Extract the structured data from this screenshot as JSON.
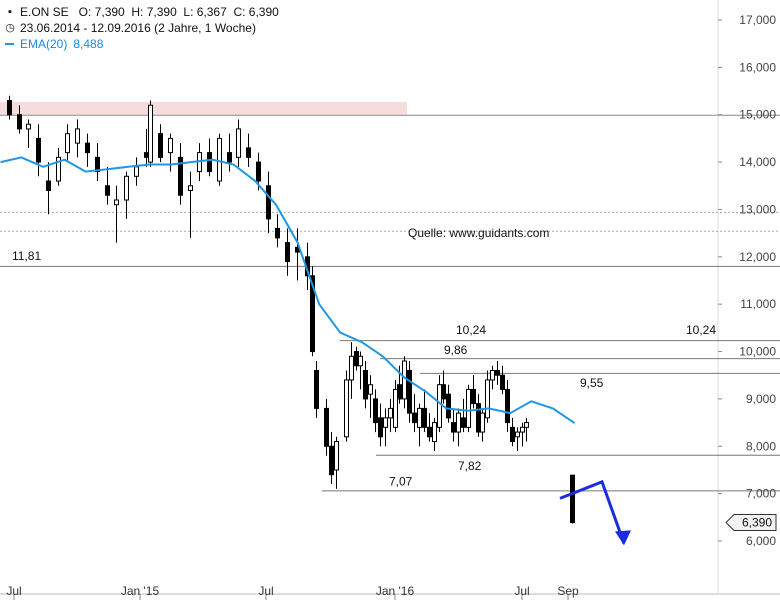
{
  "legend": {
    "ticker_line": "E.ON SE   O: 7,390  H: 7,390  L: 6,367  C: 6,390",
    "range_line": "23.06.2014 - 12.09.2016 (2 Jahre, 1 Woche)",
    "ema_label": "EMA(20)",
    "ema_value": "8,488",
    "icons": {
      "chart": "chart-icon",
      "clock": "clock-icon"
    }
  },
  "colors": {
    "ema": "#2196e6",
    "resistance_zone": "#f6dcdc",
    "forecast_arrow": "#1a2ee0",
    "candles": "#000000"
  },
  "source_label": "Quelle: www.guidants.com",
  "last_price_tag": "6,390",
  "chart_data": {
    "type": "candlestick",
    "title": "E.ON SE",
    "subtitle": "23.06.2014 - 12.09.2016 (2 Jahre, 1 Woche)",
    "y_axis": {
      "position": "right",
      "range": [
        5400,
        17400
      ],
      "ticks": [
        "6,000",
        "7,000",
        "8,000",
        "9,000",
        "10,000",
        "11,000",
        "12,000",
        "13,000",
        "14,000",
        "15,000",
        "16,000",
        "17,000"
      ]
    },
    "x_axis": {
      "tick_labels": [
        "Jul",
        "Jan '15",
        "Jul",
        "Jan '16",
        "Jul",
        "Sep"
      ]
    },
    "levels": [
      {
        "value": 15.0,
        "label": ""
      },
      {
        "value": 12.95,
        "label": ""
      },
      {
        "value": 12.55,
        "label": ""
      },
      {
        "value": 11.81,
        "label": "11,81"
      },
      {
        "value": 10.24,
        "label": "10,24"
      },
      {
        "value": 10.24,
        "label": "10,24"
      },
      {
        "value": 9.86,
        "label": "9,86"
      },
      {
        "value": 9.55,
        "label": "9,55"
      },
      {
        "value": 7.82,
        "label": "7,82"
      },
      {
        "value": 7.07,
        "label": "7,07"
      }
    ],
    "resistance_zone": [
      15.0,
      15.27
    ],
    "ema20": {
      "name": "EMA(20)",
      "last": 8.488,
      "x": [
        "2014-06",
        "2014-07",
        "2014-08",
        "2014-09",
        "2014-10",
        "2014-11",
        "2014-12",
        "2015-01",
        "2015-02",
        "2015-03",
        "2015-04",
        "2015-05",
        "2015-06",
        "2015-07",
        "2015-08",
        "2015-09",
        "2015-10",
        "2015-11",
        "2015-12",
        "2016-01",
        "2016-02",
        "2016-03",
        "2016-04",
        "2016-05",
        "2016-06",
        "2016-07",
        "2016-08",
        "2016-09"
      ],
      "values": [
        14.0,
        14.1,
        13.9,
        14.05,
        13.8,
        13.85,
        13.9,
        13.95,
        13.95,
        14.0,
        14.05,
        13.95,
        13.6,
        13.1,
        12.3,
        11.0,
        10.4,
        10.2,
        9.9,
        9.45,
        9.15,
        8.8,
        8.75,
        8.8,
        8.7,
        8.95,
        8.8,
        8.49
      ]
    },
    "candles": [
      [
        "2014-06-27",
        15.3,
        15.4,
        14.9,
        15.0
      ],
      [
        "2014-07-11",
        15.0,
        15.2,
        14.6,
        14.7
      ],
      [
        "2014-07-25",
        14.7,
        14.9,
        14.3,
        14.8
      ],
      [
        "2014-08-08",
        14.5,
        14.8,
        13.7,
        14.0
      ],
      [
        "2014-08-22",
        13.6,
        14.0,
        12.9,
        13.4
      ],
      [
        "2014-09-05",
        13.6,
        14.3,
        13.5,
        14.1
      ],
      [
        "2014-09-19",
        14.2,
        14.8,
        14.0,
        14.6
      ],
      [
        "2014-10-03",
        14.4,
        14.9,
        14.1,
        14.7
      ],
      [
        "2014-10-17",
        14.4,
        14.6,
        13.9,
        14.2
      ],
      [
        "2014-10-31",
        14.1,
        14.4,
        13.6,
        13.8
      ],
      [
        "2014-11-14",
        13.5,
        13.9,
        13.1,
        13.3
      ],
      [
        "2014-11-28",
        13.1,
        13.5,
        12.3,
        13.2
      ],
      [
        "2014-12-12",
        13.2,
        13.8,
        12.8,
        13.7
      ],
      [
        "2014-12-26",
        13.7,
        14.1,
        13.5,
        13.9
      ],
      [
        "2015-01-09",
        14.2,
        14.7,
        13.9,
        14.1
      ],
      [
        "2015-01-16",
        14.0,
        15.3,
        13.9,
        15.2
      ],
      [
        "2015-01-30",
        14.6,
        14.8,
        14.0,
        14.1
      ],
      [
        "2015-02-13",
        14.2,
        14.6,
        13.8,
        14.5
      ],
      [
        "2015-02-27",
        14.1,
        14.4,
        13.1,
        13.3
      ],
      [
        "2015-03-13",
        13.4,
        13.8,
        12.4,
        13.5
      ],
      [
        "2015-03-27",
        13.8,
        14.4,
        13.6,
        14.2
      ],
      [
        "2015-04-10",
        14.2,
        14.5,
        13.7,
        13.8
      ],
      [
        "2015-04-24",
        13.6,
        14.6,
        13.5,
        14.5
      ],
      [
        "2015-05-08",
        14.2,
        14.6,
        13.8,
        14.0
      ],
      [
        "2015-05-22",
        14.1,
        14.9,
        13.9,
        14.7
      ],
      [
        "2015-06-05",
        14.3,
        14.6,
        13.9,
        14.1
      ],
      [
        "2015-06-19",
        14.0,
        14.2,
        13.4,
        13.6
      ],
      [
        "2015-07-03",
        13.5,
        13.8,
        12.5,
        12.8
      ],
      [
        "2015-07-17",
        12.6,
        12.9,
        12.2,
        12.4
      ],
      [
        "2015-07-31",
        12.3,
        12.6,
        11.6,
        11.9
      ],
      [
        "2015-08-14",
        12.2,
        12.6,
        11.5,
        12.1
      ],
      [
        "2015-08-28",
        12.0,
        12.3,
        11.3,
        11.6
      ],
      [
        "2015-09-04",
        11.6,
        11.8,
        9.9,
        10.0
      ],
      [
        "2015-09-11",
        9.6,
        9.8,
        8.6,
        8.8
      ],
      [
        "2015-09-25",
        8.8,
        9.0,
        7.8,
        8.0
      ],
      [
        "2015-10-02",
        8.0,
        8.3,
        7.2,
        7.4
      ],
      [
        "2015-10-09",
        7.5,
        8.2,
        7.1,
        8.1
      ],
      [
        "2015-10-23",
        8.2,
        9.6,
        8.1,
        9.4
      ],
      [
        "2015-10-30",
        9.4,
        10.2,
        9.0,
        9.9
      ],
      [
        "2015-11-06",
        10.0,
        10.1,
        9.6,
        9.7
      ],
      [
        "2015-11-13",
        9.7,
        10.0,
        9.2,
        9.9
      ],
      [
        "2015-11-20",
        9.6,
        9.8,
        8.8,
        9.0
      ],
      [
        "2015-11-27",
        9.1,
        9.5,
        8.6,
        9.3
      ],
      [
        "2015-12-04",
        9.0,
        9.2,
        8.3,
        8.5
      ],
      [
        "2015-12-11",
        8.6,
        8.9,
        8.0,
        8.2
      ],
      [
        "2015-12-18",
        8.4,
        8.8,
        8.0,
        8.6
      ],
      [
        "2015-12-25",
        8.6,
        9.0,
        8.3,
        8.8
      ],
      [
        "2016-01-01",
        8.4,
        9.4,
        8.3,
        9.2
      ],
      [
        "2016-01-08",
        9.3,
        9.7,
        8.9,
        9.0
      ],
      [
        "2016-01-15",
        9.0,
        9.9,
        8.8,
        9.8
      ],
      [
        "2016-01-22",
        9.6,
        9.8,
        8.5,
        8.7
      ],
      [
        "2016-01-29",
        8.7,
        9.1,
        8.3,
        8.5
      ],
      [
        "2016-02-05",
        8.4,
        8.9,
        8.0,
        8.8
      ],
      [
        "2016-02-12",
        8.8,
        9.2,
        8.3,
        8.4
      ],
      [
        "2016-02-19",
        8.4,
        8.7,
        8.1,
        8.2
      ],
      [
        "2016-02-26",
        8.1,
        8.6,
        7.9,
        8.5
      ],
      [
        "2016-03-04",
        8.4,
        9.5,
        8.3,
        9.3
      ],
      [
        "2016-03-11",
        9.3,
        9.6,
        8.9,
        9.0
      ],
      [
        "2016-03-18",
        9.1,
        9.3,
        8.5,
        8.6
      ],
      [
        "2016-03-25",
        8.5,
        8.8,
        8.1,
        8.3
      ],
      [
        "2016-04-01",
        8.3,
        8.8,
        8.0,
        8.7
      ],
      [
        "2016-04-08",
        8.6,
        9.0,
        8.3,
        8.4
      ],
      [
        "2016-04-15",
        8.4,
        9.3,
        8.3,
        9.2
      ],
      [
        "2016-04-22",
        9.2,
        9.5,
        8.8,
        8.9
      ],
      [
        "2016-04-29",
        8.9,
        9.1,
        8.2,
        8.3
      ],
      [
        "2016-05-06",
        8.3,
        8.8,
        8.1,
        8.7
      ],
      [
        "2016-05-13",
        8.6,
        9.6,
        8.5,
        9.4
      ],
      [
        "2016-05-20",
        9.4,
        9.7,
        9.2,
        9.6
      ],
      [
        "2016-05-27",
        9.6,
        9.8,
        9.3,
        9.5
      ],
      [
        "2016-06-03",
        9.5,
        9.7,
        9.1,
        9.2
      ],
      [
        "2016-06-10",
        9.2,
        9.4,
        8.3,
        8.5
      ],
      [
        "2016-06-17",
        8.4,
        8.6,
        8.0,
        8.1
      ],
      [
        "2016-06-24",
        8.2,
        8.4,
        7.9,
        8.3
      ],
      [
        "2016-07-01",
        8.3,
        8.5,
        8.0,
        8.4
      ],
      [
        "2016-07-08",
        8.4,
        8.6,
        8.1,
        8.5
      ],
      [
        "2016-09-12",
        7.39,
        7.39,
        6.367,
        6.39
      ]
    ],
    "forecast": {
      "type": "arrow",
      "points": [
        [
          6.9
        ],
        [
          7.25
        ],
        [
          5.95
        ]
      ]
    }
  }
}
